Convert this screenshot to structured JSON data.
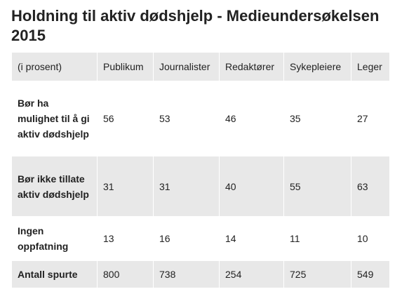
{
  "title": "Holdning til aktiv dødshjelp - Medieundersøkelsen 2015",
  "table": {
    "header": {
      "corner": "(i prosent)",
      "columns": [
        "Publikum",
        "Journalister",
        "Redaktører",
        "Sykepleiere",
        "Leger"
      ]
    },
    "rows": [
      {
        "label": "Bør ha mulighet til å gi aktiv dødshjelp",
        "values": [
          "56",
          "53",
          "46",
          "35",
          "27"
        ]
      },
      {
        "label": "Bør ikke tillate aktiv dødshjelp",
        "values": [
          "31",
          "31",
          "40",
          "55",
          "63"
        ]
      },
      {
        "label": "Ingen oppfatning",
        "values": [
          "13",
          "16",
          "14",
          "11",
          "10"
        ]
      },
      {
        "label": "Antall spurte",
        "values": [
          "800",
          "738",
          "254",
          "725",
          "549"
        ]
      }
    ]
  },
  "colors": {
    "row_grey": "#e8e8e8",
    "row_white": "#ffffff",
    "text": "#222222"
  }
}
